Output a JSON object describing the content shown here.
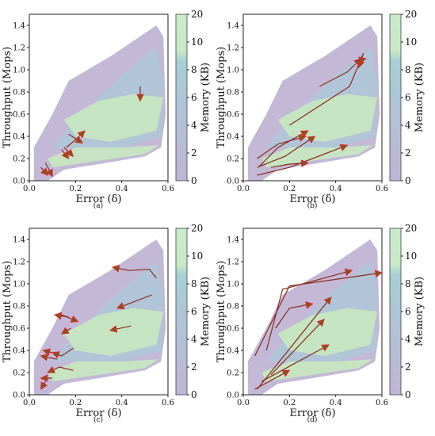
{
  "figure": {
    "panel_labels": [
      "(a)",
      "(b)",
      "(c)",
      "(d)"
    ]
  },
  "colors": {
    "region_low": "#bcb1d2",
    "region_mid": "#a9c9d8",
    "region_high": "#c6e6c1",
    "trajectory": "#8b2a1c",
    "arrowhead": "#7a5a1a",
    "arrow_tip_highlight": "#e8202e"
  },
  "chart_data": [
    {
      "type": "contour",
      "panel": "(a)",
      "xlabel": "Error (δ)",
      "ylabel": "Throughput (Mops)",
      "xlim": [
        0,
        0.6
      ],
      "ylim": [
        0,
        1.5
      ],
      "xticks": [
        "0.0",
        "0.2",
        "0.4",
        "0.6"
      ],
      "yticks": [
        "0.0",
        "0.2",
        "0.4",
        "0.6",
        "0.8",
        "1.0",
        "1.2",
        "1.4"
      ],
      "colorbar": {
        "label": "Memory (KB)",
        "ticks": [
          "0",
          "2",
          "4",
          "6",
          "8",
          "10",
          "20"
        ],
        "range": [
          0,
          20
        ]
      },
      "trajectories": [
        {
          "x": [
            0.48,
            0.48
          ],
          "y": [
            0.85,
            0.72
          ]
        },
        {
          "x": [
            0.07,
            0.1
          ],
          "y": [
            0.16,
            0.04
          ]
        },
        {
          "x": [
            0.05,
            0.08
          ],
          "y": [
            0.12,
            0.05
          ]
        },
        {
          "x": [
            0.16,
            0.2,
            0.24
          ],
          "y": [
            0.3,
            0.37,
            0.45
          ]
        },
        {
          "x": [
            0.17,
            0.23
          ],
          "y": [
            0.42,
            0.34
          ]
        },
        {
          "x": [
            0.14,
            0.17
          ],
          "y": [
            0.28,
            0.2
          ]
        },
        {
          "x": [
            0.15,
            0.19
          ],
          "y": [
            0.3,
            0.22
          ]
        }
      ]
    },
    {
      "type": "contour",
      "panel": "(b)",
      "xlabel": "Error (δ)",
      "ylabel": "Throughput (Mops)",
      "xlim": [
        0,
        0.6
      ],
      "ylim": [
        0,
        1.5
      ],
      "xticks": [
        "0.0",
        "0.2",
        "0.4",
        "0.6"
      ],
      "yticks": [
        "0.0",
        "0.2",
        "0.4",
        "0.6",
        "0.8",
        "1.0",
        "1.2",
        "1.4"
      ],
      "colorbar": {
        "label": "Memory (KB)",
        "ticks": [
          "0",
          "2",
          "4",
          "6",
          "8",
          "10",
          "20"
        ],
        "range": [
          0,
          20
        ]
      },
      "trajectories": [
        {
          "x": [
            0.33,
            0.45,
            0.51
          ],
          "y": [
            0.85,
            0.98,
            1.1
          ]
        },
        {
          "x": [
            0.2,
            0.46,
            0.52,
            0.5
          ],
          "y": [
            0.5,
            0.85,
            1.15,
            1.02
          ]
        },
        {
          "x": [
            0.49,
            0.53
          ],
          "y": [
            1.08,
            1.1
          ]
        },
        {
          "x": [
            0.07,
            0.15,
            0.28
          ],
          "y": [
            0.13,
            0.3,
            0.45
          ]
        },
        {
          "x": [
            0.06,
            0.15,
            0.27
          ],
          "y": [
            0.2,
            0.33,
            0.4
          ]
        },
        {
          "x": [
            0.06,
            0.18,
            0.31
          ],
          "y": [
            0.12,
            0.22,
            0.4
          ]
        },
        {
          "x": [
            0.06,
            0.2,
            0.45
          ],
          "y": [
            0.05,
            0.12,
            0.32
          ]
        },
        {
          "x": [
            0.12,
            0.2,
            0.28
          ],
          "y": [
            0.12,
            0.15,
            0.16
          ]
        }
      ]
    },
    {
      "type": "contour",
      "panel": "(c)",
      "xlabel": "Error (δ)",
      "ylabel": "Throughput (Mops)",
      "xlim": [
        0,
        0.6
      ],
      "ylim": [
        0,
        1.5
      ],
      "xticks": [
        "0.0",
        "0.2",
        "0.4",
        "0.6"
      ],
      "yticks": [
        "0.0",
        "0.2",
        "0.4",
        "0.6",
        "0.8",
        "1.0",
        "1.2",
        "1.4"
      ],
      "colorbar": {
        "label": "Memory (KB)",
        "ticks": [
          "0",
          "2",
          "4",
          "6",
          "8",
          "10",
          "20"
        ],
        "range": [
          0,
          20
        ]
      },
      "trajectories": [
        {
          "x": [
            0.55,
            0.52,
            0.43,
            0.36
          ],
          "y": [
            1.05,
            1.13,
            1.12,
            1.15
          ]
        },
        {
          "x": [
            0.53,
            0.38
          ],
          "y": [
            0.9,
            0.78
          ]
        },
        {
          "x": [
            0.44,
            0.35
          ],
          "y": [
            0.62,
            0.58
          ]
        },
        {
          "x": [
            0.17,
            0.11
          ],
          "y": [
            0.7,
            0.72
          ]
        },
        {
          "x": [
            0.14,
            0.21
          ],
          "y": [
            0.72,
            0.66
          ]
        },
        {
          "x": [
            0.18,
            0.14
          ],
          "y": [
            0.6,
            0.55
          ]
        },
        {
          "x": [
            0.1,
            0.06
          ],
          "y": [
            0.38,
            0.4
          ]
        },
        {
          "x": [
            0.12,
            0.05
          ],
          "y": [
            0.32,
            0.35
          ]
        },
        {
          "x": [
            0.19,
            0.14,
            0.1
          ],
          "y": [
            0.42,
            0.35,
            0.38
          ]
        },
        {
          "x": [
            0.19,
            0.13,
            0.08
          ],
          "y": [
            0.22,
            0.25,
            0.2
          ]
        },
        {
          "x": [
            0.1,
            0.05
          ],
          "y": [
            0.15,
            0.15
          ]
        },
        {
          "x": [
            0.07,
            0.05
          ],
          "y": [
            0.12,
            0.05
          ]
        }
      ]
    },
    {
      "type": "contour",
      "panel": "(d)",
      "xlabel": "Error (δ)",
      "ylabel": "Throughput (Mops)",
      "xlim": [
        0,
        0.6
      ],
      "ylim": [
        0,
        1.5
      ],
      "xticks": [
        "0.0",
        "0.2",
        "0.4",
        "0.6"
      ],
      "yticks": [
        "0.0",
        "0.2",
        "0.4",
        "0.6",
        "0.8",
        "1.0",
        "1.2",
        "1.4"
      ],
      "colorbar": {
        "label": "Memory (KB)",
        "ticks": [
          "0",
          "2",
          "4",
          "6",
          "8",
          "10",
          "20"
        ],
        "range": [
          0,
          20
        ]
      },
      "trajectories": [
        {
          "x": [
            0.05,
            0.2,
            0.6
          ],
          "y": [
            0.35,
            0.98,
            1.1
          ]
        },
        {
          "x": [
            0.1,
            0.17,
            0.47
          ],
          "y": [
            0.4,
            0.95,
            1.12
          ]
        },
        {
          "x": [
            0.14,
            0.2,
            0.3
          ],
          "y": [
            0.6,
            0.78,
            0.82
          ]
        },
        {
          "x": [
            0.06,
            0.38
          ],
          "y": [
            0.05,
            0.88
          ]
        },
        {
          "x": [
            0.12,
            0.35
          ],
          "y": [
            0.18,
            0.68
          ]
        },
        {
          "x": [
            0.08,
            0.37
          ],
          "y": [
            0.12,
            0.45
          ]
        },
        {
          "x": [
            0.05,
            0.2
          ],
          "y": [
            0.05,
            0.22
          ]
        }
      ]
    }
  ]
}
